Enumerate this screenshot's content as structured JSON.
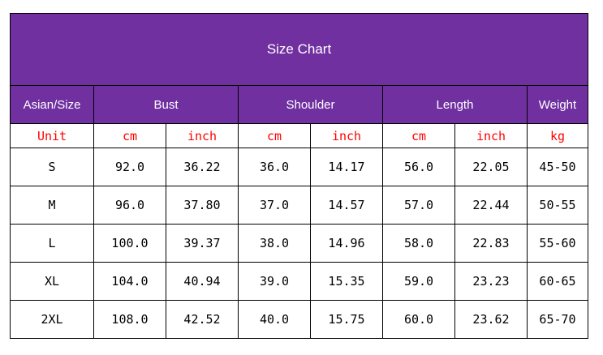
{
  "title": "Size Chart",
  "headers": {
    "size": "Asian/Size",
    "bust": "Bust",
    "shoulder": "Shoulder",
    "length": "Length",
    "weight": "Weight"
  },
  "units": [
    "Unit",
    "cm",
    "inch",
    "cm",
    "inch",
    "cm",
    "inch",
    "kg"
  ],
  "rows": [
    [
      "S",
      "92.0",
      "36.22",
      "36.0",
      "14.17",
      "56.0",
      "22.05",
      "45-50"
    ],
    [
      "M",
      "96.0",
      "37.80",
      "37.0",
      "14.57",
      "57.0",
      "22.44",
      "50-55"
    ],
    [
      "L",
      "100.0",
      "39.37",
      "38.0",
      "14.96",
      "58.0",
      "22.83",
      "55-60"
    ],
    [
      "XL",
      "104.0",
      "40.94",
      "39.0",
      "15.35",
      "59.0",
      "23.23",
      "60-65"
    ],
    [
      "2XL",
      "108.0",
      "42.52",
      "40.0",
      "15.75",
      "60.0",
      "23.62",
      "65-70"
    ]
  ],
  "colors": {
    "header_bg": "#7030a0",
    "header_text": "#ffffff",
    "unit_text": "#ff0000"
  }
}
